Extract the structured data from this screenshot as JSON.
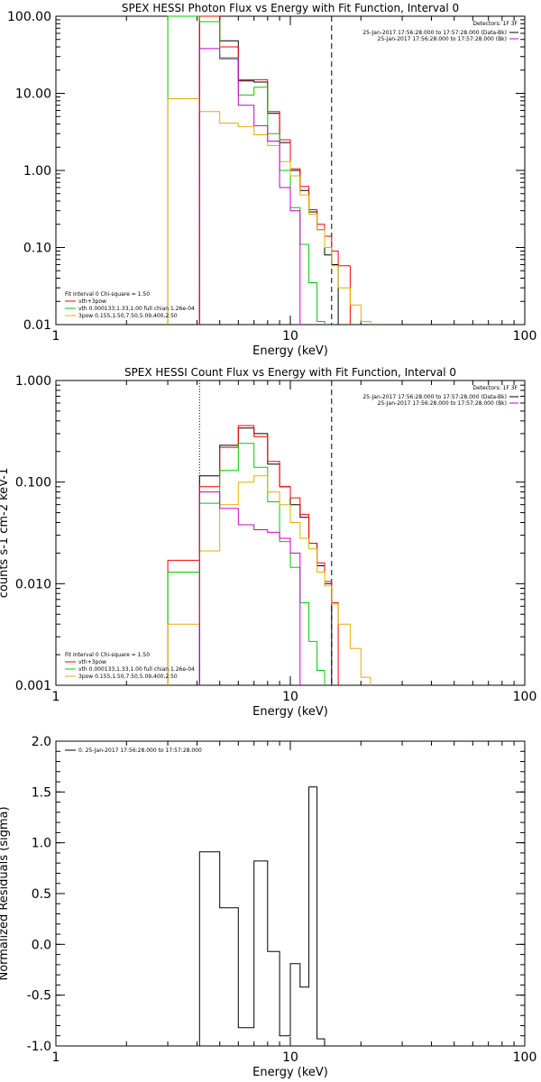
{
  "chart_data": [
    {
      "type": "line",
      "title": "SPEX HESSI Photon Flux vs Energy with Fit Function, Interval 0",
      "xlabel": "Energy (keV)",
      "ylabel": "",
      "xscale": "log",
      "yscale": "log",
      "xlim": [
        1,
        100
      ],
      "ylim": [
        0.01,
        100
      ],
      "xticks": [
        "1",
        "10",
        "100"
      ],
      "yticks": [
        "100.00",
        "10.00",
        "1.00",
        "0.10",
        "0.01"
      ],
      "vlines": [
        {
          "x": 4.1,
          "style": "dotted",
          "color": "#000000"
        },
        {
          "x": 15.0,
          "style": "dashed",
          "color": "#000000"
        }
      ],
      "detectors_note": "Detectors: 1F 3F",
      "legend_top_right": [
        {
          "text": "25-Jan-2017 17:56:28.000 to 17:57:28.000 (Data-Bk)",
          "color": "#000000"
        },
        {
          "text": "25-Jan-2017 17:56:28.000 to 17:57:28.000 (Bk)",
          "color": "#cc00cc"
        }
      ],
      "fit_header": "Fit Interval 0   Chi-square = 1.50",
      "legend_bottom_left": [
        {
          "text": "vth+3pow",
          "color": "#ff0000"
        },
        {
          "text": "vth 0.000133,1.33,1.00  full chian 1.26e-04",
          "color": "#00cc00"
        },
        {
          "text": "3pow 0.155,1.50,7.50,5.09,400,2.50",
          "color": "#e0b000"
        }
      ],
      "edges": [
        3.0,
        4.1,
        5.0,
        6.0,
        7.0,
        8.0,
        9.0,
        10.0,
        11.0,
        12.0,
        13.0,
        14.0,
        15.0,
        16.0,
        18.0,
        20.0,
        22.0
      ],
      "series": [
        {
          "name": "Data-Bk",
          "color": "#000000",
          "values": [
            null,
            100.0,
            48.0,
            14.5,
            14.0,
            5.5,
            2.3,
            1.0,
            0.55,
            0.29,
            0.17,
            0.08,
            0.06,
            null,
            null,
            null
          ]
        },
        {
          "name": "vth+3pow",
          "color": "#ff0000",
          "values": [
            null,
            100.0,
            40.0,
            15.0,
            15.0,
            5.8,
            2.5,
            1.05,
            0.62,
            0.31,
            0.2,
            0.14,
            0.09,
            0.058,
            null,
            null
          ]
        },
        {
          "name": "vth",
          "color": "#00cc00",
          "values": [
            100.0,
            85.0,
            29.0,
            9.5,
            12.0,
            3.0,
            1.0,
            0.33,
            0.11,
            0.035,
            0.011,
            null,
            null,
            null,
            null,
            null
          ]
        },
        {
          "name": "3pow",
          "color": "#e0b000",
          "values": [
            8.5,
            5.8,
            4.1,
            3.7,
            2.9,
            2.1,
            1.3,
            0.85,
            0.48,
            0.27,
            0.17,
            0.1,
            0.058,
            0.03,
            0.018,
            0.011
          ]
        },
        {
          "name": "Bk",
          "color": "#cc00cc",
          "values": [
            null,
            38.0,
            28.0,
            7.0,
            3.8,
            2.4,
            0.6,
            0.3,
            null,
            null,
            null,
            null,
            null,
            null,
            null,
            null
          ]
        }
      ]
    },
    {
      "type": "line",
      "title": "SPEX HESSI Count Flux vs Energy with Fit Function, Interval 0",
      "xlabel": "Energy (keV)",
      "ylabel": "counts s-1 cm-2 keV-1",
      "xscale": "log",
      "yscale": "log",
      "xlim": [
        1,
        100
      ],
      "ylim": [
        0.001,
        1
      ],
      "xticks": [
        "1",
        "10",
        "100"
      ],
      "yticks": [
        "1.000",
        "0.100",
        "0.010",
        "0.001"
      ],
      "vlines": [
        {
          "x": 4.1,
          "style": "dotted",
          "color": "#000000"
        },
        {
          "x": 15.0,
          "style": "dashed",
          "color": "#000000"
        }
      ],
      "detectors_note": "Detectors: 1F 3F",
      "legend_top_right": [
        {
          "text": "25-Jan-2017 17:56:28.000 to 17:57:28.000 (Data-Bk)",
          "color": "#000000"
        },
        {
          "text": "25-Jan-2017 17:56:28.000 to 17:57:28.000 (Bk)",
          "color": "#cc00cc"
        }
      ],
      "fit_header": "Fit Interval 0   Chi-square = 1.50",
      "legend_bottom_left": [
        {
          "text": "vth+3pow",
          "color": "#ff0000"
        },
        {
          "text": "vth 0.000133,1.33,1.00  full chian 1.26e-04",
          "color": "#00cc00"
        },
        {
          "text": "3pow 0.155,1.50,7.50,5.09,400,2.50",
          "color": "#e0b000"
        }
      ],
      "edges": [
        3.0,
        4.1,
        5.0,
        6.0,
        7.0,
        8.0,
        9.0,
        10.0,
        11.0,
        12.0,
        13.0,
        14.0,
        15.0,
        16.0,
        18.0,
        20.0,
        22.0
      ],
      "series": [
        {
          "name": "Data-Bk",
          "color": "#000000",
          "values": [
            null,
            0.115,
            0.23,
            0.34,
            0.3,
            0.15,
            0.09,
            0.06,
            0.045,
            0.025,
            0.015,
            0.01,
            null,
            null,
            null,
            null
          ]
        },
        {
          "name": "vth+3pow",
          "color": "#ff0000",
          "values": [
            0.017,
            0.09,
            0.22,
            0.36,
            0.28,
            0.16,
            0.09,
            0.07,
            0.048,
            0.025,
            0.016,
            0.0105,
            0.0065,
            null,
            null,
            null
          ]
        },
        {
          "name": "vth",
          "color": "#00cc00",
          "values": [
            0.013,
            0.062,
            0.13,
            0.24,
            0.14,
            0.064,
            0.026,
            0.0145,
            0.0065,
            0.0027,
            0.0014,
            null,
            null,
            null,
            null,
            null
          ]
        },
        {
          "name": "3pow",
          "color": "#e0b000",
          "values": [
            0.004,
            0.021,
            0.06,
            0.1,
            0.115,
            0.08,
            0.06,
            0.04,
            0.028,
            0.022,
            0.013,
            0.0095,
            0.0063,
            0.004,
            0.0023,
            0.0012
          ]
        },
        {
          "name": "Bk",
          "color": "#cc00cc",
          "values": [
            null,
            0.08,
            0.055,
            0.038,
            0.034,
            0.032,
            0.028,
            0.02,
            null,
            null,
            null,
            null,
            null,
            null,
            null,
            null
          ]
        }
      ]
    },
    {
      "type": "line",
      "title": "",
      "xlabel": "Energy (keV)",
      "ylabel": "Normalized Residuals (sigma)",
      "xscale": "log",
      "yscale": "linear",
      "xlim": [
        1,
        100
      ],
      "ylim": [
        -1.0,
        2.0
      ],
      "xticks": [
        "1",
        "10",
        "100"
      ],
      "yticks": [
        "2.0",
        "1.5",
        "1.0",
        "0.5",
        "0.0",
        "-0.5",
        "-1.0"
      ],
      "legend_top_left": [
        {
          "text": "0. 25-Jan-2017 17:56:28.000 to 17:57:28.000",
          "color": "#000000"
        }
      ],
      "edges": [
        4.1,
        5.0,
        6.0,
        7.0,
        8.0,
        9.0,
        10.0,
        11.0,
        12.0,
        13.0,
        14.0,
        15.0
      ],
      "series": [
        {
          "name": "",
          "color": "#000000",
          "values": [
            0.91,
            0.36,
            -0.82,
            0.82,
            -0.07,
            -0.9,
            -0.19,
            -0.42,
            1.55,
            -0.93,
            -1.0
          ]
        }
      ]
    }
  ]
}
